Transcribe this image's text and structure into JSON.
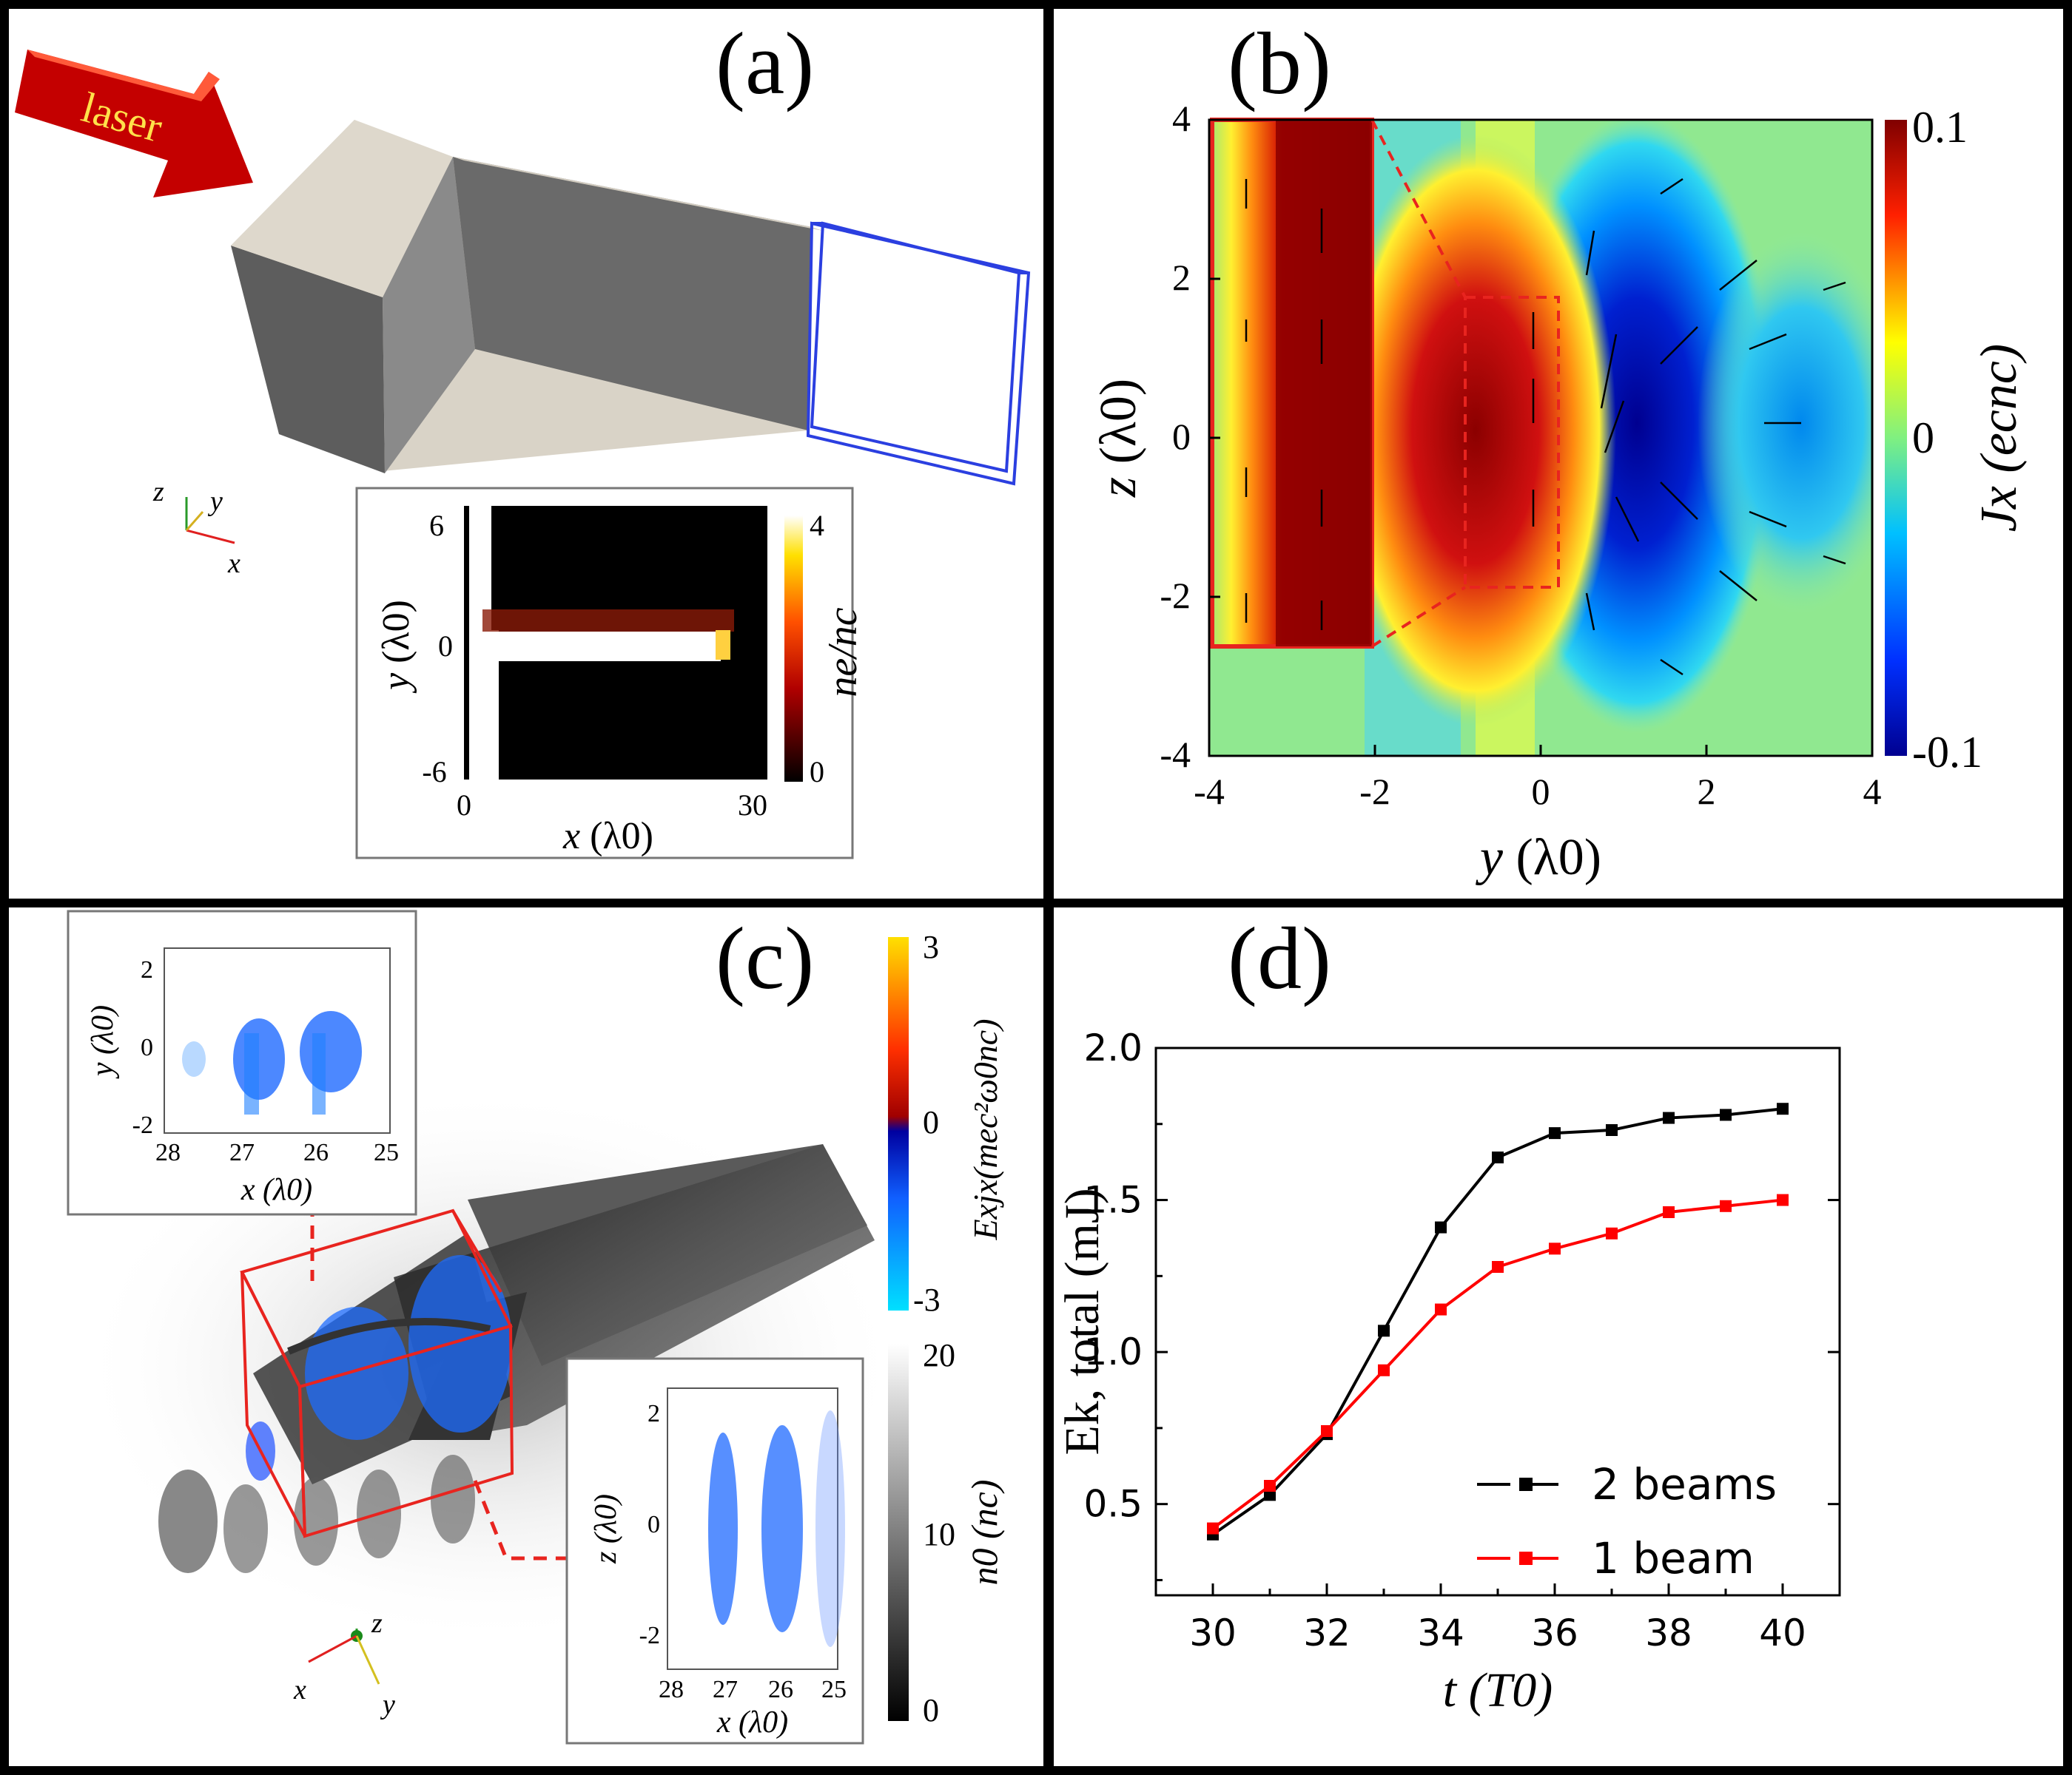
{
  "colors": {
    "border": "#000000",
    "series_black": "#000000",
    "series_red": "#ff0000",
    "box_red": "#e8241f",
    "box_blue": "#2b3fe0",
    "block_face": "#6e6e6e",
    "block_top": "#ded8cc",
    "laser_red": "#cc0000",
    "laser_text": "#ffe14a"
  },
  "panel_a": {
    "label": "(a)",
    "laser_label": "laser",
    "axis_triad": {
      "z": "z",
      "y": "y",
      "x": "x"
    },
    "inset": {
      "xlabel_var": "x",
      "xlabel_unit": "(λ0)",
      "ylabel_var": "y",
      "ylabel_unit": "(λ0)",
      "xticks": [
        "0",
        "30"
      ],
      "yticks": [
        "6",
        "0",
        "-6"
      ],
      "colorbar_ticks": [
        "4",
        "0"
      ],
      "colorbar_label": "ne/nc"
    }
  },
  "panel_b": {
    "label": "(b)",
    "xlabel_var": "y",
    "xlabel_unit": "(λ0)",
    "ylabel_var": "z",
    "ylabel_unit": "(λ0)",
    "xticks": [
      "-4",
      "-2",
      "0",
      "2",
      "4"
    ],
    "yticks": [
      "4",
      "2",
      "0",
      "-2",
      "-4"
    ],
    "colorbar_ticks": [
      "0.1",
      "0",
      "-0.1"
    ],
    "colorbar_label": "Jx (ecnc)"
  },
  "panel_c": {
    "label": "(c)",
    "axis_triad": {
      "z": "z",
      "y": "y",
      "x": "x"
    },
    "inset_top": {
      "xlabel": "x (λ0)",
      "ylabel": "y (λ0)",
      "xticks": [
        "28",
        "27",
        "26",
        "25"
      ],
      "yticks": [
        "2",
        "0",
        "-2"
      ]
    },
    "inset_bottom": {
      "xlabel": "x (λ0)",
      "ylabel": "z (λ0)",
      "xticks": [
        "28",
        "27",
        "26",
        "25"
      ],
      "yticks": [
        "2",
        "0",
        "-2"
      ]
    },
    "colorbar1": {
      "ticks": [
        "3",
        "0",
        "-3"
      ],
      "label": "Exjx(mec²ω0nc)"
    },
    "colorbar2": {
      "ticks": [
        "20",
        "10",
        "0"
      ],
      "label": "n0 (nc)"
    }
  },
  "panel_d": {
    "label": "(d)",
    "chart_data": {
      "type": "line",
      "xlabel": "t (T0)",
      "ylabel": "Ek, total (mJ)",
      "xlim": [
        29,
        41
      ],
      "ylim": [
        0.2,
        2.0
      ],
      "xticks": [
        "30",
        "32",
        "34",
        "36",
        "38",
        "40"
      ],
      "yticks": [
        "0.5",
        "1.0",
        "1.5",
        "2.0"
      ],
      "legend_position": "lower-right",
      "x": [
        30,
        31,
        32,
        33,
        34,
        35,
        36,
        37,
        38,
        39,
        40
      ],
      "series": [
        {
          "name": "2 beams",
          "color": "#000000",
          "values": [
            0.4,
            0.53,
            0.73,
            1.07,
            1.41,
            1.64,
            1.72,
            1.73,
            1.77,
            1.78,
            1.8
          ]
        },
        {
          "name": "1 beam",
          "color": "#ff0000",
          "values": [
            0.42,
            0.56,
            0.74,
            0.94,
            1.14,
            1.28,
            1.34,
            1.39,
            1.46,
            1.48,
            1.5
          ]
        }
      ]
    }
  }
}
